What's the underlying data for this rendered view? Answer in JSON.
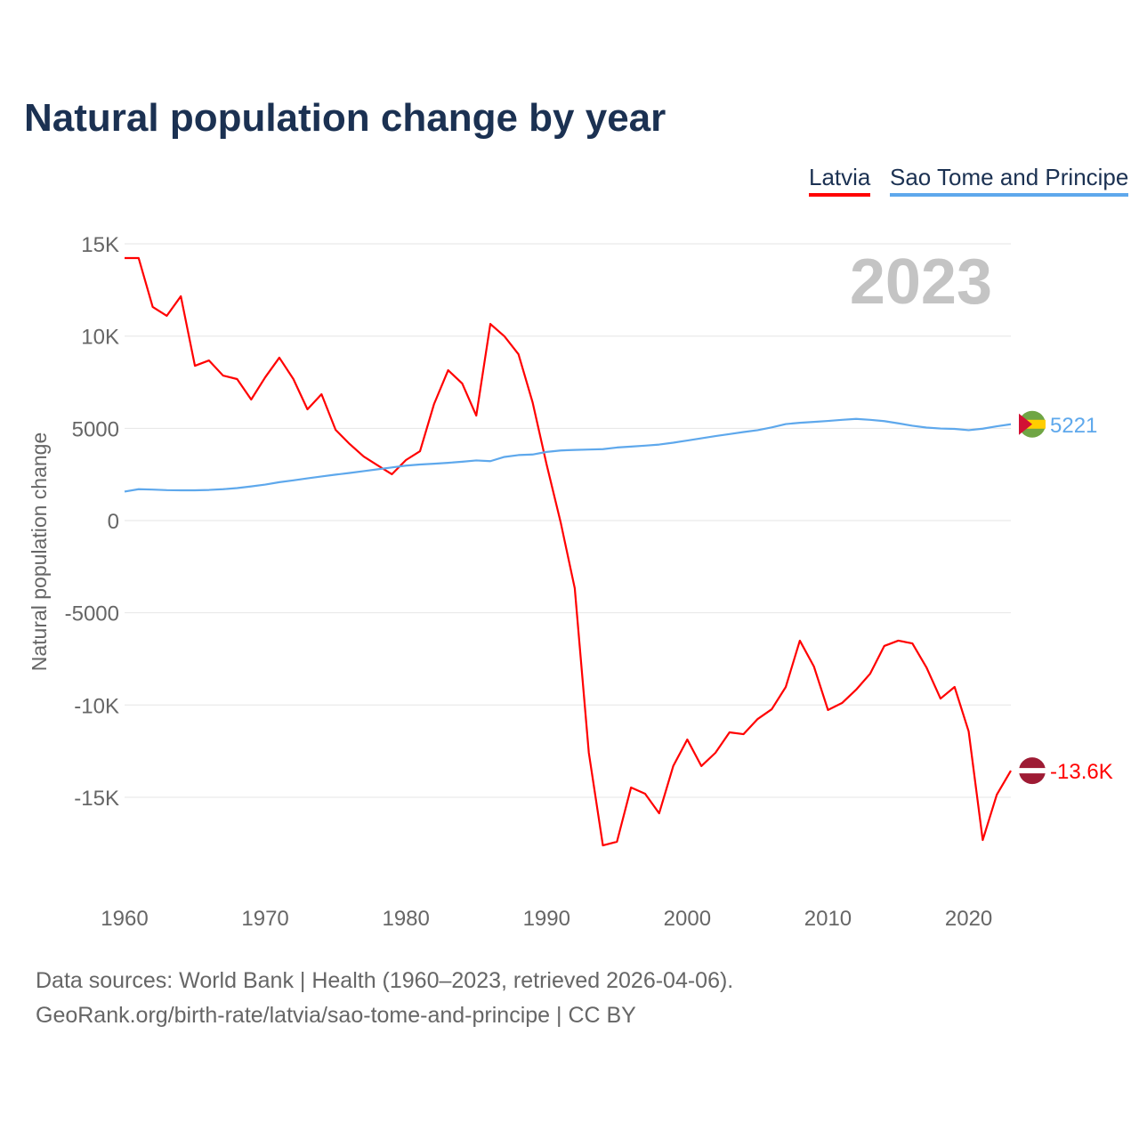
{
  "chart_data": {
    "type": "line",
    "title": "Natural population change by year",
    "ylabel": "Natural population change",
    "xlabel": "",
    "year_watermark": "2023",
    "xlim": [
      1960,
      2023
    ],
    "ylim": [
      -20000,
      15000
    ],
    "yticks": [
      15000,
      10000,
      5000,
      0,
      -5000,
      -10000,
      -15000
    ],
    "ytick_labels": [
      "15K",
      "10K",
      "5000",
      "0",
      "-5000",
      "-10K",
      "-15K"
    ],
    "xticks": [
      1960,
      1970,
      1980,
      1990,
      2000,
      2010,
      2020
    ],
    "xtick_labels": [
      "1960",
      "1970",
      "1980",
      "1990",
      "2000",
      "2010",
      "2020"
    ],
    "grid": true,
    "legend_placement": "top-right",
    "series": [
      {
        "name": "Latvia",
        "color": "#ff0000",
        "end_label": "-13.6K",
        "values": [
          14230,
          14230,
          11580,
          11100,
          12160,
          8390,
          8680,
          7860,
          7670,
          6560,
          7770,
          8830,
          7670,
          6030,
          6850,
          4920,
          4150,
          3470,
          2990,
          2510,
          3280,
          3760,
          6320,
          8150,
          7430,
          5690,
          10660,
          9990,
          9020,
          6420,
          3040,
          -100,
          -3670,
          -12590,
          -17610,
          -17410,
          -14470,
          -14810,
          -15870,
          -13310,
          -11870,
          -13310,
          -12590,
          -11480,
          -11580,
          -10760,
          -10230,
          -9020,
          -6510,
          -7910,
          -10270,
          -9890,
          -9170,
          -8300,
          -6800,
          -6510,
          -6660,
          -7960,
          -9650,
          -9020,
          -11430,
          -17320,
          -14860,
          -13560
        ]
      },
      {
        "name": "Sao Tome and Principe",
        "color": "#5ea8ec",
        "end_label": "5221",
        "values": [
          1570,
          1700,
          1680,
          1650,
          1640,
          1640,
          1660,
          1700,
          1760,
          1850,
          1950,
          2080,
          2180,
          2290,
          2390,
          2490,
          2580,
          2680,
          2780,
          2880,
          2980,
          3040,
          3080,
          3130,
          3190,
          3260,
          3220,
          3450,
          3550,
          3580,
          3720,
          3800,
          3830,
          3850,
          3870,
          3960,
          4010,
          4060,
          4120,
          4220,
          4340,
          4460,
          4580,
          4690,
          4800,
          4900,
          5050,
          5230,
          5300,
          5350,
          5400,
          5460,
          5510,
          5460,
          5390,
          5270,
          5140,
          5040,
          4990,
          4970,
          4900,
          4980,
          5110,
          5221
        ]
      }
    ]
  },
  "footer": {
    "line1": "Data sources: World Bank | Health (1960–2023, retrieved 2026-04-06).",
    "line2": "GeoRank.org/birth-rate/latvia/sao-tome-and-principe | CC BY"
  }
}
